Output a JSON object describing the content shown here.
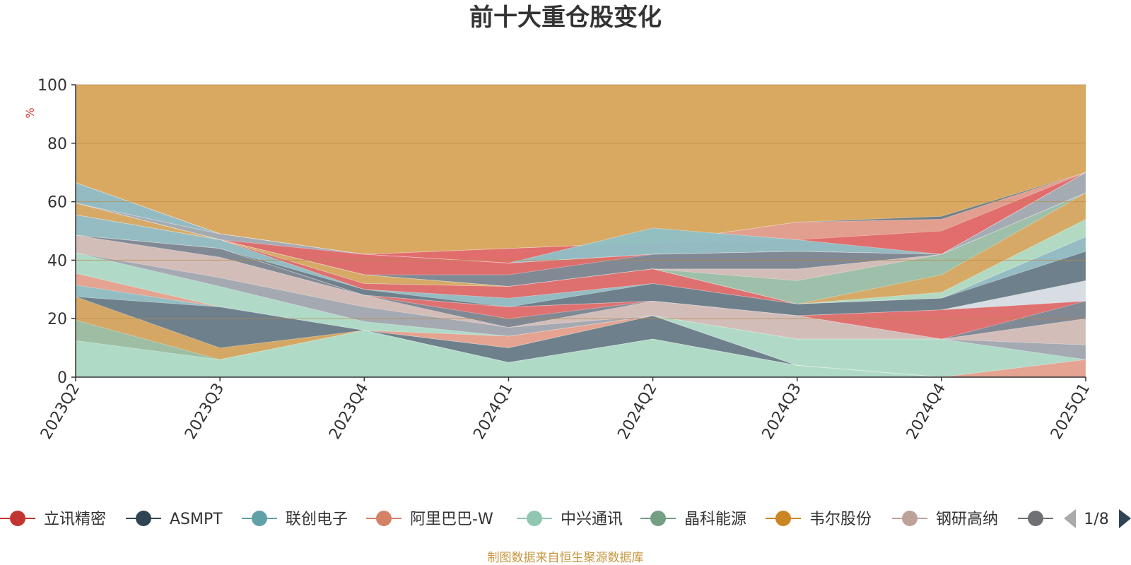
{
  "chart_data": {
    "type": "area",
    "title": "前十大重仓股变化",
    "ylabel": "%",
    "ylim": [
      0,
      100
    ],
    "yticks": [
      "0",
      "20",
      "40",
      "60",
      "80",
      "100"
    ],
    "categories": [
      "2023Q2",
      "2023Q3",
      "2023Q4",
      "2024Q1",
      "2024Q2",
      "2024Q3",
      "2024Q4",
      "2025Q1"
    ],
    "grid": true,
    "legend_position": "bottom",
    "page_indicator": "1/8",
    "source": "制图数据来自恒生聚源数据库",
    "background_color": "#d9a962",
    "layers": [
      {
        "color": "#b0dcc8",
        "upper": [
          12.5,
          6,
          16,
          5,
          13,
          4,
          0,
          0
        ]
      },
      {
        "color": "#9bbfa8",
        "upper": [
          19.5,
          6,
          16,
          5,
          13,
          4,
          0,
          0
        ]
      },
      {
        "color": "#d9a962",
        "upper": [
          27.5,
          10,
          16,
          5,
          13,
          4,
          0,
          0
        ]
      },
      {
        "color": "#6c7c88",
        "upper": [
          27.5,
          24,
          16,
          10,
          21,
          4,
          0,
          0
        ]
      },
      {
        "color": "#8fc0c6",
        "upper": [
          31.5,
          24,
          16,
          10,
          21,
          4,
          0,
          0
        ]
      },
      {
        "color": "#e8a08e",
        "upper": [
          35.5,
          24,
          16,
          14,
          21,
          4,
          0,
          6
        ]
      },
      {
        "color": "#b0dcc8",
        "upper": [
          42.5,
          31,
          19,
          14,
          21,
          13,
          13,
          6
        ]
      },
      {
        "color": "#a2a8b0",
        "upper": [
          42.5,
          34,
          24,
          17,
          21,
          13,
          13,
          11
        ]
      },
      {
        "color": "#d6c0ba",
        "upper": [
          48.5,
          41,
          28,
          17,
          26,
          21,
          13,
          20
        ]
      },
      {
        "color": "#7a8a96",
        "upper": [
          48.5,
          44,
          28,
          20,
          26,
          21,
          13,
          26
        ]
      },
      {
        "color": "#e06a6a",
        "upper": [
          48.5,
          44,
          28,
          24,
          26,
          21,
          23,
          26
        ]
      },
      {
        "color": "#dde2e8",
        "upper": [
          48.5,
          44,
          28,
          24,
          26,
          21,
          23,
          33
        ]
      },
      {
        "color": "#6c7c88",
        "upper": [
          48.5,
          44,
          30,
          24,
          32,
          25,
          27,
          43
        ]
      },
      {
        "color": "#8fc0c6",
        "upper": [
          55.5,
          47,
          30,
          27,
          32,
          25,
          27,
          48
        ]
      },
      {
        "color": "#e06a6a",
        "upper": [
          55.5,
          47,
          32,
          31,
          37,
          25,
          27,
          48
        ]
      },
      {
        "color": "#b0dcc8",
        "upper": [
          55.5,
          47,
          32,
          31,
          37,
          25,
          29,
          54
        ]
      },
      {
        "color": "#d9a962",
        "upper": [
          59.5,
          47,
          35,
          31,
          37,
          25,
          35,
          63
        ]
      },
      {
        "color": "#9bbfa8",
        "upper": [
          59.5,
          47,
          35,
          31,
          37,
          33,
          42,
          63
        ]
      },
      {
        "color": "#d6c0ba",
        "upper": [
          59.5,
          47,
          35,
          31,
          37,
          37,
          42,
          63
        ]
      },
      {
        "color": "#7a8a96",
        "upper": [
          59.5,
          47,
          35,
          35,
          42,
          43,
          42,
          63
        ]
      },
      {
        "color": "#e06a6a",
        "upper": [
          59.5,
          47,
          42,
          39,
          42,
          43,
          42,
          63
        ]
      },
      {
        "color": "#a2a8b0",
        "upper": [
          59.5,
          49,
          42,
          39,
          42,
          43,
          42,
          70
        ]
      },
      {
        "color": "#dde2e8",
        "upper": [
          59.5,
          49,
          42,
          39,
          42,
          43,
          42,
          70
        ]
      },
      {
        "color": "#8fc0c6",
        "upper": [
          66.5,
          49,
          42,
          39,
          51,
          47,
          42,
          70
        ]
      },
      {
        "color": "#e06a6a",
        "upper": [
          66.5,
          49,
          42,
          44,
          46,
          47,
          50,
          70
        ]
      },
      {
        "color": "#e8a08e",
        "upper": [
          66.5,
          49,
          42,
          44,
          46,
          53,
          54,
          70
        ]
      },
      {
        "color": "#6c7c88",
        "upper": [
          66.5,
          49,
          42,
          44,
          46,
          53,
          55,
          70
        ]
      }
    ],
    "series": [
      {
        "name": "立讯精密",
        "color": "#c23531"
      },
      {
        "name": "ASMPT",
        "color": "#2f4554"
      },
      {
        "name": "联创电子",
        "color": "#61a0a8"
      },
      {
        "name": "阿里巴巴-W",
        "color": "#d48265"
      },
      {
        "name": "中兴通讯",
        "color": "#91c7ae"
      },
      {
        "name": "晶科能源",
        "color": "#749f83"
      },
      {
        "name": "韦尔股份",
        "color": "#ca8622"
      },
      {
        "name": "钢研高纳",
        "color": "#bda29a"
      },
      {
        "name": "",
        "color": "#6e7074"
      }
    ]
  }
}
